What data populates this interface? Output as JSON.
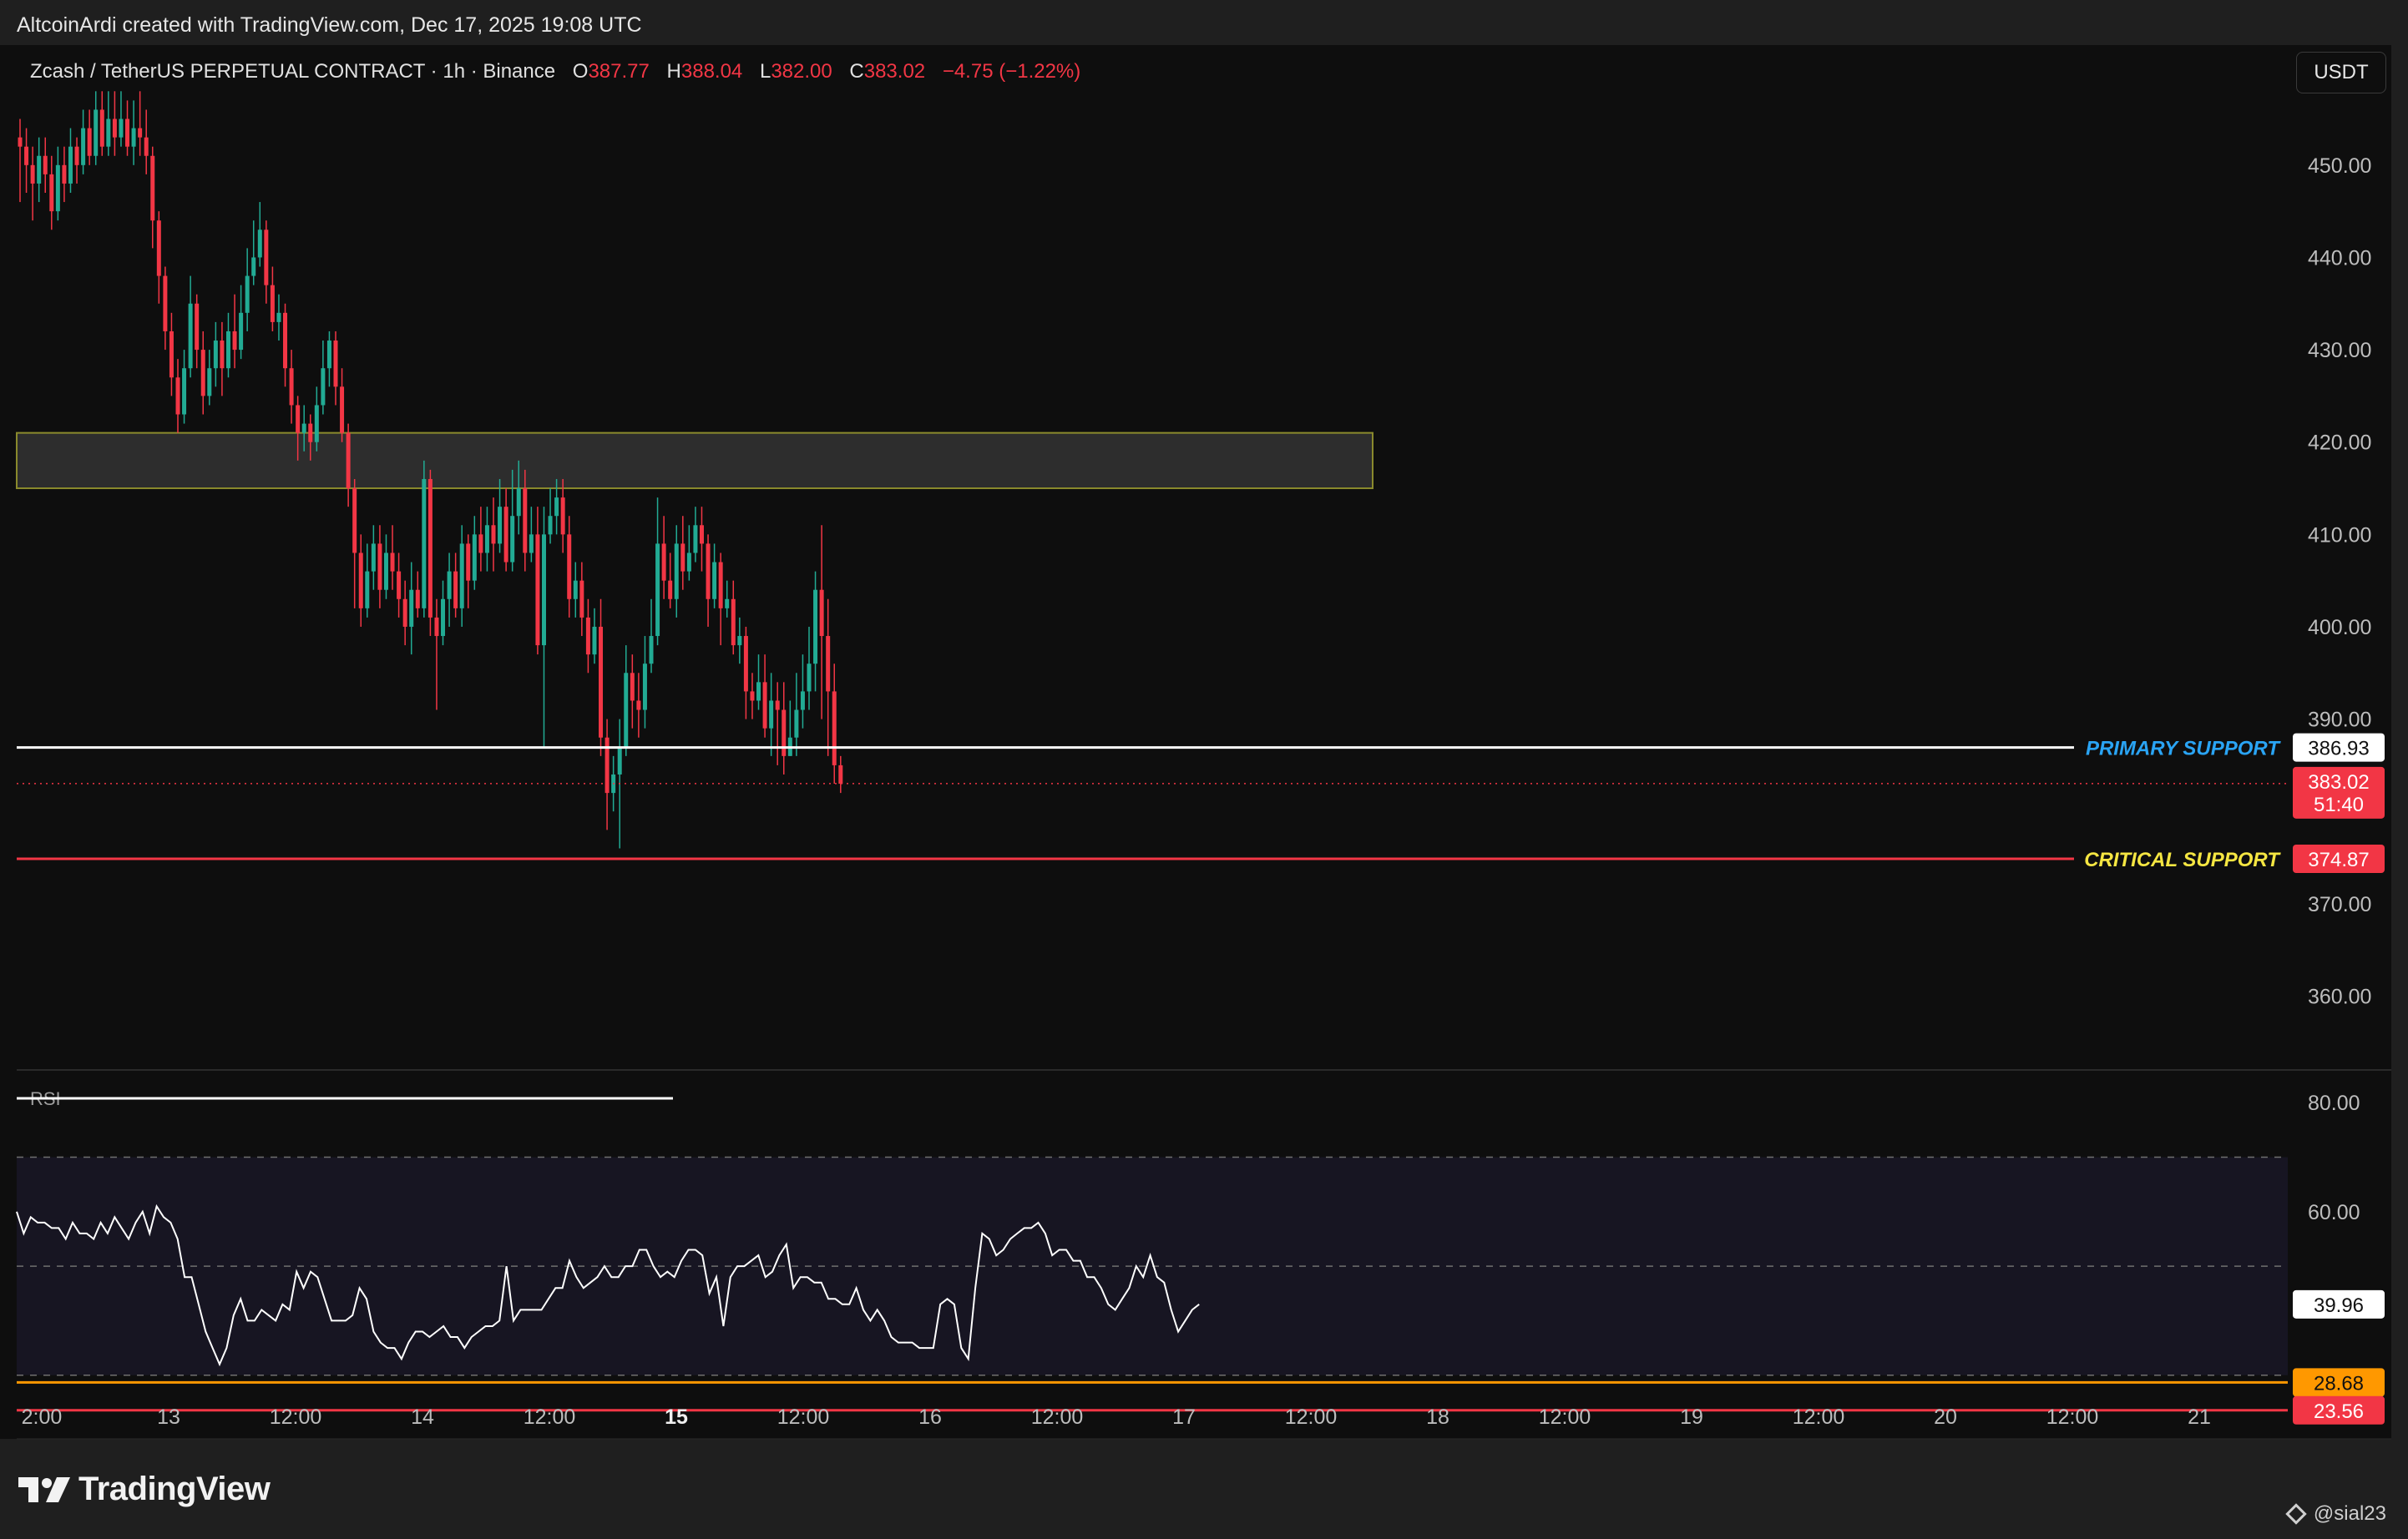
{
  "credit": "AltcoinArdi created with TradingView.com, Dec 17, 2025 19:08 UTC",
  "footer": {
    "brand": "TradingView",
    "user": "@sial23"
  },
  "unit_button": "USDT",
  "colors": {
    "up": "#22ab94",
    "down": "#f23645",
    "background": "#0e0e0e",
    "primary_line": "#ffffff",
    "critical_line": "#f23645",
    "primary_label": "#2aa4f4",
    "critical_label": "#f5e642",
    "rsi_line": "#ffffff",
    "rsi_orange": "#ff9800"
  },
  "chart_data": [
    {
      "type": "candlestick",
      "legend": {
        "symbol": "Zcash / TetherUS PERPETUAL CONTRACT · 1h · Binance",
        "o_label": "O",
        "o": "387.77",
        "h_label": "H",
        "h": "388.04",
        "l_label": "L",
        "l": "382.00",
        "c_label": "C",
        "c": "383.02",
        "change": "−4.75 (−1.22%)"
      },
      "y_axis": {
        "min": 352,
        "max": 463,
        "ticks": [
          "450.00",
          "440.00",
          "430.00",
          "420.00",
          "410.00",
          "400.00",
          "390.00",
          "370.00",
          "360.00"
        ]
      },
      "x_axis": {
        "ticks": [
          "2:00",
          "13",
          "12:00",
          "14",
          "12:00",
          "15",
          "12:00",
          "16",
          "12:00",
          "17",
          "12:00",
          "18",
          "12:00",
          "19",
          "12:00",
          "20",
          "12:00",
          "21"
        ]
      },
      "candles": [
        [
          453,
          452,
          455,
          446
        ],
        [
          452,
          450,
          454,
          447
        ],
        [
          450,
          448,
          452,
          444
        ],
        [
          448,
          451,
          453,
          446
        ],
        [
          451,
          449,
          453,
          447
        ],
        [
          449,
          445,
          451,
          443
        ],
        [
          445,
          450,
          452,
          444
        ],
        [
          450,
          448,
          452,
          446
        ],
        [
          448,
          452,
          454,
          447
        ],
        [
          452,
          450,
          453,
          448
        ],
        [
          450,
          454,
          456,
          449
        ],
        [
          454,
          451,
          456,
          450
        ],
        [
          451,
          456,
          458,
          450
        ],
        [
          456,
          452,
          458,
          451
        ],
        [
          452,
          455,
          458,
          451
        ],
        [
          455,
          453,
          458,
          451
        ],
        [
          453,
          455,
          458,
          452
        ],
        [
          455,
          452,
          457,
          451
        ],
        [
          452,
          454,
          457,
          450
        ],
        [
          454,
          453,
          458,
          451
        ],
        [
          453,
          451,
          456,
          449
        ],
        [
          451,
          444,
          452,
          441
        ],
        [
          444,
          438,
          445,
          435
        ],
        [
          438,
          432,
          439,
          430
        ],
        [
          432,
          427,
          434,
          425
        ],
        [
          427,
          423,
          429,
          421
        ],
        [
          423,
          428,
          430,
          422
        ],
        [
          428,
          435,
          438,
          427
        ],
        [
          435,
          430,
          436,
          428
        ],
        [
          430,
          425,
          432,
          423
        ],
        [
          425,
          428,
          430,
          424
        ],
        [
          428,
          431,
          433,
          426
        ],
        [
          431,
          428,
          433,
          425
        ],
        [
          428,
          432,
          434,
          427
        ],
        [
          432,
          430,
          436,
          428
        ],
        [
          430,
          434,
          437,
          429
        ],
        [
          434,
          438,
          441,
          432
        ],
        [
          438,
          440,
          444,
          437
        ],
        [
          440,
          443,
          446,
          439
        ],
        [
          443,
          437,
          444,
          435
        ],
        [
          437,
          433,
          439,
          432
        ],
        [
          433,
          434,
          436,
          431
        ],
        [
          434,
          428,
          435,
          426
        ],
        [
          428,
          424,
          430,
          422
        ],
        [
          424,
          421,
          425,
          418
        ],
        [
          421,
          422,
          424,
          419
        ],
        [
          422,
          420,
          423,
          418
        ],
        [
          420,
          424,
          426,
          419
        ],
        [
          424,
          428,
          431,
          423
        ],
        [
          428,
          431,
          432,
          426
        ],
        [
          431,
          426,
          432,
          424
        ],
        [
          426,
          421,
          428,
          420
        ],
        [
          421,
          415,
          422,
          413
        ],
        [
          415,
          408,
          416,
          402
        ],
        [
          408,
          402,
          410,
          400
        ],
        [
          402,
          406,
          409,
          401
        ],
        [
          406,
          409,
          411,
          404
        ],
        [
          409,
          404,
          411,
          402
        ],
        [
          404,
          408,
          410,
          403
        ],
        [
          408,
          406,
          411,
          404
        ],
        [
          406,
          403,
          408,
          401
        ],
        [
          403,
          400,
          405,
          398
        ],
        [
          400,
          404,
          407,
          397
        ],
        [
          404,
          402,
          406,
          401
        ],
        [
          402,
          416,
          418,
          401
        ],
        [
          416,
          401,
          417,
          399
        ],
        [
          401,
          399,
          403,
          391
        ],
        [
          399,
          403,
          405,
          398
        ],
        [
          403,
          406,
          408,
          400
        ],
        [
          406,
          402,
          408,
          401
        ],
        [
          402,
          409,
          411,
          400
        ],
        [
          409,
          405,
          410,
          402
        ],
        [
          405,
          410,
          412,
          404
        ],
        [
          410,
          408,
          413,
          406
        ],
        [
          408,
          411,
          413,
          406
        ],
        [
          411,
          409,
          414,
          406
        ],
        [
          409,
          413,
          416,
          408
        ],
        [
          413,
          407,
          415,
          406
        ],
        [
          407,
          412,
          417,
          406
        ],
        [
          412,
          415,
          418,
          410
        ],
        [
          415,
          408,
          417,
          406
        ],
        [
          408,
          410,
          413,
          407
        ],
        [
          410,
          398,
          413,
          397
        ],
        [
          398,
          410,
          413,
          387
        ],
        [
          410,
          412,
          415,
          409
        ],
        [
          412,
          414,
          416,
          410
        ],
        [
          414,
          410,
          416,
          408
        ],
        [
          410,
          403,
          412,
          401
        ],
        [
          403,
          405,
          407,
          401
        ],
        [
          405,
          401,
          407,
          399
        ],
        [
          401,
          397,
          403,
          395
        ],
        [
          397,
          400,
          402,
          396
        ],
        [
          400,
          388,
          403,
          386
        ],
        [
          388,
          382,
          390,
          378
        ],
        [
          382,
          384,
          386,
          380
        ],
        [
          384,
          387,
          390,
          376
        ],
        [
          387,
          395,
          398,
          386
        ],
        [
          395,
          392,
          397,
          389
        ],
        [
          392,
          391,
          395,
          388
        ],
        [
          391,
          396,
          399,
          389
        ],
        [
          396,
          399,
          403,
          395
        ],
        [
          399,
          409,
          414,
          398
        ],
        [
          409,
          405,
          412,
          403
        ],
        [
          405,
          403,
          408,
          402
        ],
        [
          403,
          409,
          411,
          401
        ],
        [
          409,
          406,
          412,
          404
        ],
        [
          406,
          408,
          411,
          405
        ],
        [
          408,
          411,
          413,
          407
        ],
        [
          411,
          409,
          413,
          406
        ],
        [
          409,
          403,
          410,
          400
        ],
        [
          403,
          407,
          409,
          402
        ],
        [
          407,
          402,
          408,
          398
        ],
        [
          402,
          403,
          405,
          401
        ],
        [
          403,
          398,
          405,
          397
        ],
        [
          398,
          399,
          401,
          396
        ],
        [
          399,
          393,
          400,
          390
        ],
        [
          393,
          392,
          395,
          390
        ],
        [
          392,
          394,
          397,
          391
        ],
        [
          394,
          389,
          397,
          388
        ],
        [
          389,
          392,
          395,
          386
        ],
        [
          392,
          391,
          394,
          385
        ],
        [
          391,
          386,
          394,
          384
        ],
        [
          386,
          388,
          392,
          386
        ],
        [
          388,
          391,
          395,
          386
        ],
        [
          391,
          393,
          397,
          389
        ],
        [
          393,
          396,
          400,
          391
        ],
        [
          396,
          404,
          406,
          393
        ],
        [
          404,
          399,
          411,
          390
        ],
        [
          399,
          393,
          403,
          386
        ],
        [
          393,
          385,
          396,
          383
        ],
        [
          385,
          383,
          386,
          382
        ]
      ]
    },
    {
      "type": "line",
      "name": "RSI",
      "y_axis": {
        "min": 22,
        "max": 86,
        "ticks": [
          "80.00",
          "60.00"
        ]
      },
      "bands": {
        "upper": 70,
        "middle": 50,
        "lower": 30
      },
      "values": [
        60,
        56,
        59,
        58,
        58,
        57,
        57,
        55,
        58,
        56,
        56,
        55,
        58,
        56,
        59,
        57,
        55,
        58,
        60,
        56,
        61,
        59,
        58,
        55,
        48,
        48,
        43,
        38,
        35,
        32,
        35,
        41,
        44,
        40,
        40,
        42,
        41,
        40,
        43,
        42,
        49,
        46,
        49,
        48,
        44,
        40,
        40,
        40,
        41,
        46,
        44,
        38,
        36,
        35,
        35,
        33,
        36,
        38,
        38,
        37,
        38,
        39,
        37,
        37,
        35,
        37,
        38,
        39,
        39,
        40,
        50,
        40,
        42,
        42,
        42,
        42,
        44,
        46,
        46,
        51,
        48,
        46,
        47,
        48,
        50,
        48,
        48,
        50,
        50,
        53,
        53,
        50,
        48,
        49,
        48,
        51,
        53,
        53,
        52,
        45,
        48,
        39,
        48,
        50,
        50,
        51,
        52,
        48,
        49,
        52,
        54,
        46,
        48,
        48,
        47,
        47,
        44,
        44,
        43,
        43,
        46,
        42,
        40,
        42,
        40,
        37,
        36,
        36,
        36,
        35,
        35,
        35,
        43,
        44,
        43,
        35,
        33,
        46,
        56,
        55,
        52,
        53,
        55,
        56,
        57,
        57,
        58,
        56,
        52,
        53,
        53,
        51,
        51,
        48,
        48,
        46,
        43,
        42,
        44,
        46,
        50,
        48,
        52,
        48,
        47,
        42,
        38,
        40,
        42,
        43
      ]
    }
  ],
  "levels": [
    {
      "name": "PRIMARY SUPPORT",
      "value": 386.93,
      "badge": "386.93"
    },
    {
      "name": "CRITICAL SUPPORT",
      "value": 374.87,
      "badge": "374.87"
    }
  ],
  "current_price": {
    "value": 383.02,
    "badge": "383.02",
    "countdown": "51:40"
  },
  "zone": {
    "low": 415,
    "high": 421
  },
  "rsi_label": "RSI",
  "rsi_badges": {
    "current": "39.96",
    "orange": "28.68",
    "red": "23.56"
  },
  "rsi_levels": {
    "orange": 28.68,
    "red": 23.56
  }
}
